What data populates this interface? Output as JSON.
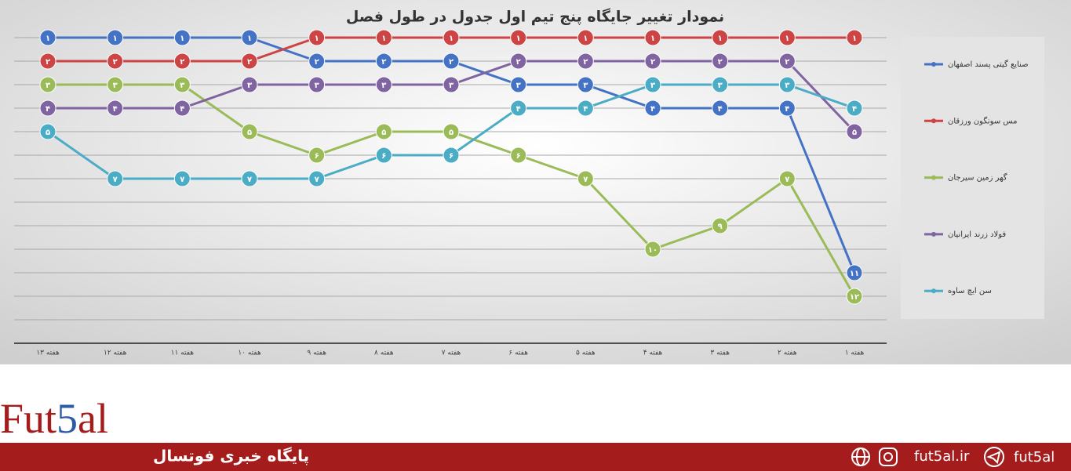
{
  "chart_data": {
    "type": "line",
    "title": "نمودار تغییر جایگاه پنج تیم اول جدول در طول فصل",
    "categories": [
      "هفته ۱۳",
      "هفته ۱۲",
      "هفته ۱۱",
      "هفته ۱۰",
      "هفته ۹",
      "هفته ۸",
      "هفته ۷",
      "هفته ۶",
      "هفته ۵",
      "هفته ۴",
      "هفته ۳",
      "هفته ۲",
      "هفته ۱"
    ],
    "series": [
      {
        "name": "صنایع گیتی پسند اصفهان",
        "color": "#4472c4",
        "values": [
          1,
          1,
          1,
          1,
          2,
          2,
          2,
          3,
          3,
          4,
          4,
          4,
          11
        ],
        "value_labels": [
          "۱",
          "۱",
          "۱",
          "۱",
          "۲",
          "۲",
          "۲",
          "۳",
          "۳",
          "۴",
          "۴",
          "۴",
          "۱۱"
        ]
      },
      {
        "name": "مس سونگون ورزقان",
        "color": "#cc4444",
        "values": [
          2,
          2,
          2,
          2,
          1,
          1,
          1,
          1,
          1,
          1,
          1,
          1,
          1
        ],
        "value_labels": [
          "۲",
          "۲",
          "۲",
          "۲",
          "۱",
          "۱",
          "۱",
          "۱",
          "۱",
          "۱",
          "۱",
          "۱",
          "۱"
        ]
      },
      {
        "name": "گهر زمین سیرجان",
        "color": "#9bbb59",
        "values": [
          3,
          3,
          3,
          5,
          6,
          5,
          5,
          6,
          7,
          10,
          9,
          7,
          12
        ],
        "value_labels": [
          "۳",
          "۳",
          "۳",
          "۵",
          "۶",
          "۵",
          "۵",
          "۶",
          "۷",
          "۱۰",
          "۹",
          "۷",
          "۱۲"
        ]
      },
      {
        "name": "فولاد زرند ایرانیان",
        "color": "#8064a2",
        "values": [
          4,
          4,
          4,
          3,
          3,
          3,
          3,
          2,
          2,
          2,
          2,
          2,
          5
        ],
        "value_labels": [
          "۴",
          "۴",
          "۴",
          "۳",
          "۳",
          "۳",
          "۳",
          "۲",
          "۲",
          "۲",
          "۲",
          "۲",
          "۵"
        ]
      },
      {
        "name": "سن ایچ ساوه",
        "color": "#4bacc6",
        "values": [
          5,
          7,
          7,
          7,
          7,
          6,
          6,
          4,
          4,
          3,
          3,
          3,
          4
        ],
        "value_labels": [
          "۵",
          "۷",
          "۷",
          "۷",
          "۷",
          "۶",
          "۶",
          "۴",
          "۴",
          "۳",
          "۳",
          "۳",
          "۴"
        ]
      }
    ],
    "ylim": [
      14,
      0
    ],
    "yticks": [
      1,
      2,
      3,
      4,
      5,
      6,
      7,
      8,
      9,
      10,
      11,
      12,
      13
    ],
    "grid": true,
    "legend": "right"
  },
  "branding": {
    "logo": [
      "Fut",
      "5",
      "al"
    ],
    "tagline": "پایگاه خبری فوتسال",
    "website": "fut5al.ir",
    "telegram": "fut5al"
  }
}
